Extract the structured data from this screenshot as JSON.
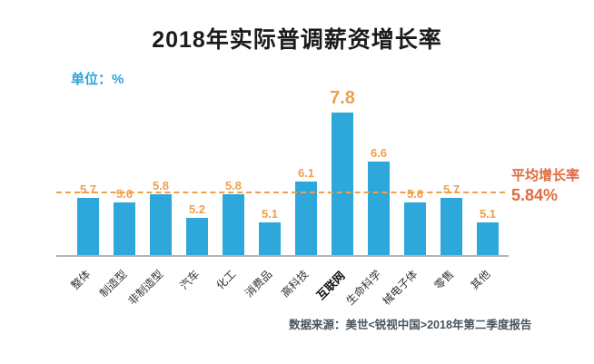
{
  "title": "2018年实际普调薪资增长率",
  "unit_label": "单位：%",
  "source": "数据来源：美世<锐视中国>2018年第二季度报告",
  "average_line": {
    "label": "平均增长率",
    "value": "5.84%"
  },
  "colors": {
    "bar": "#2ea7db",
    "value_label": "#efa04a",
    "average_line": "#efa04a",
    "average_text": "#e06a40",
    "unit_label": "#2ca3da",
    "title": "#1b1b1b",
    "category_label": "#333333",
    "axis_line": "#b3b3b3",
    "source_text": "#4a545e",
    "background": "#ffffff"
  },
  "chart_data": {
    "type": "bar",
    "title": "2018年实际普调薪资增长率",
    "unit": "%",
    "categories": [
      "整体",
      "制造型",
      "非制造型",
      "汽车",
      "化工",
      "消费品",
      "高科技",
      "互联网",
      "生命科学",
      "械电子体",
      "零售",
      "其他"
    ],
    "values": [
      5.7,
      5.6,
      5.8,
      5.2,
      5.8,
      5.1,
      6.1,
      7.8,
      6.6,
      5.6,
      5.7,
      5.1
    ],
    "average": 5.84,
    "average_label": "平均增长率",
    "average_value_text": "5.84%",
    "highlight_category": "互联网",
    "max_value": 7.8,
    "ylim": [
      4.3,
      8.3
    ],
    "grid": false,
    "legend": false,
    "xlabel": "",
    "ylabel": "%"
  }
}
